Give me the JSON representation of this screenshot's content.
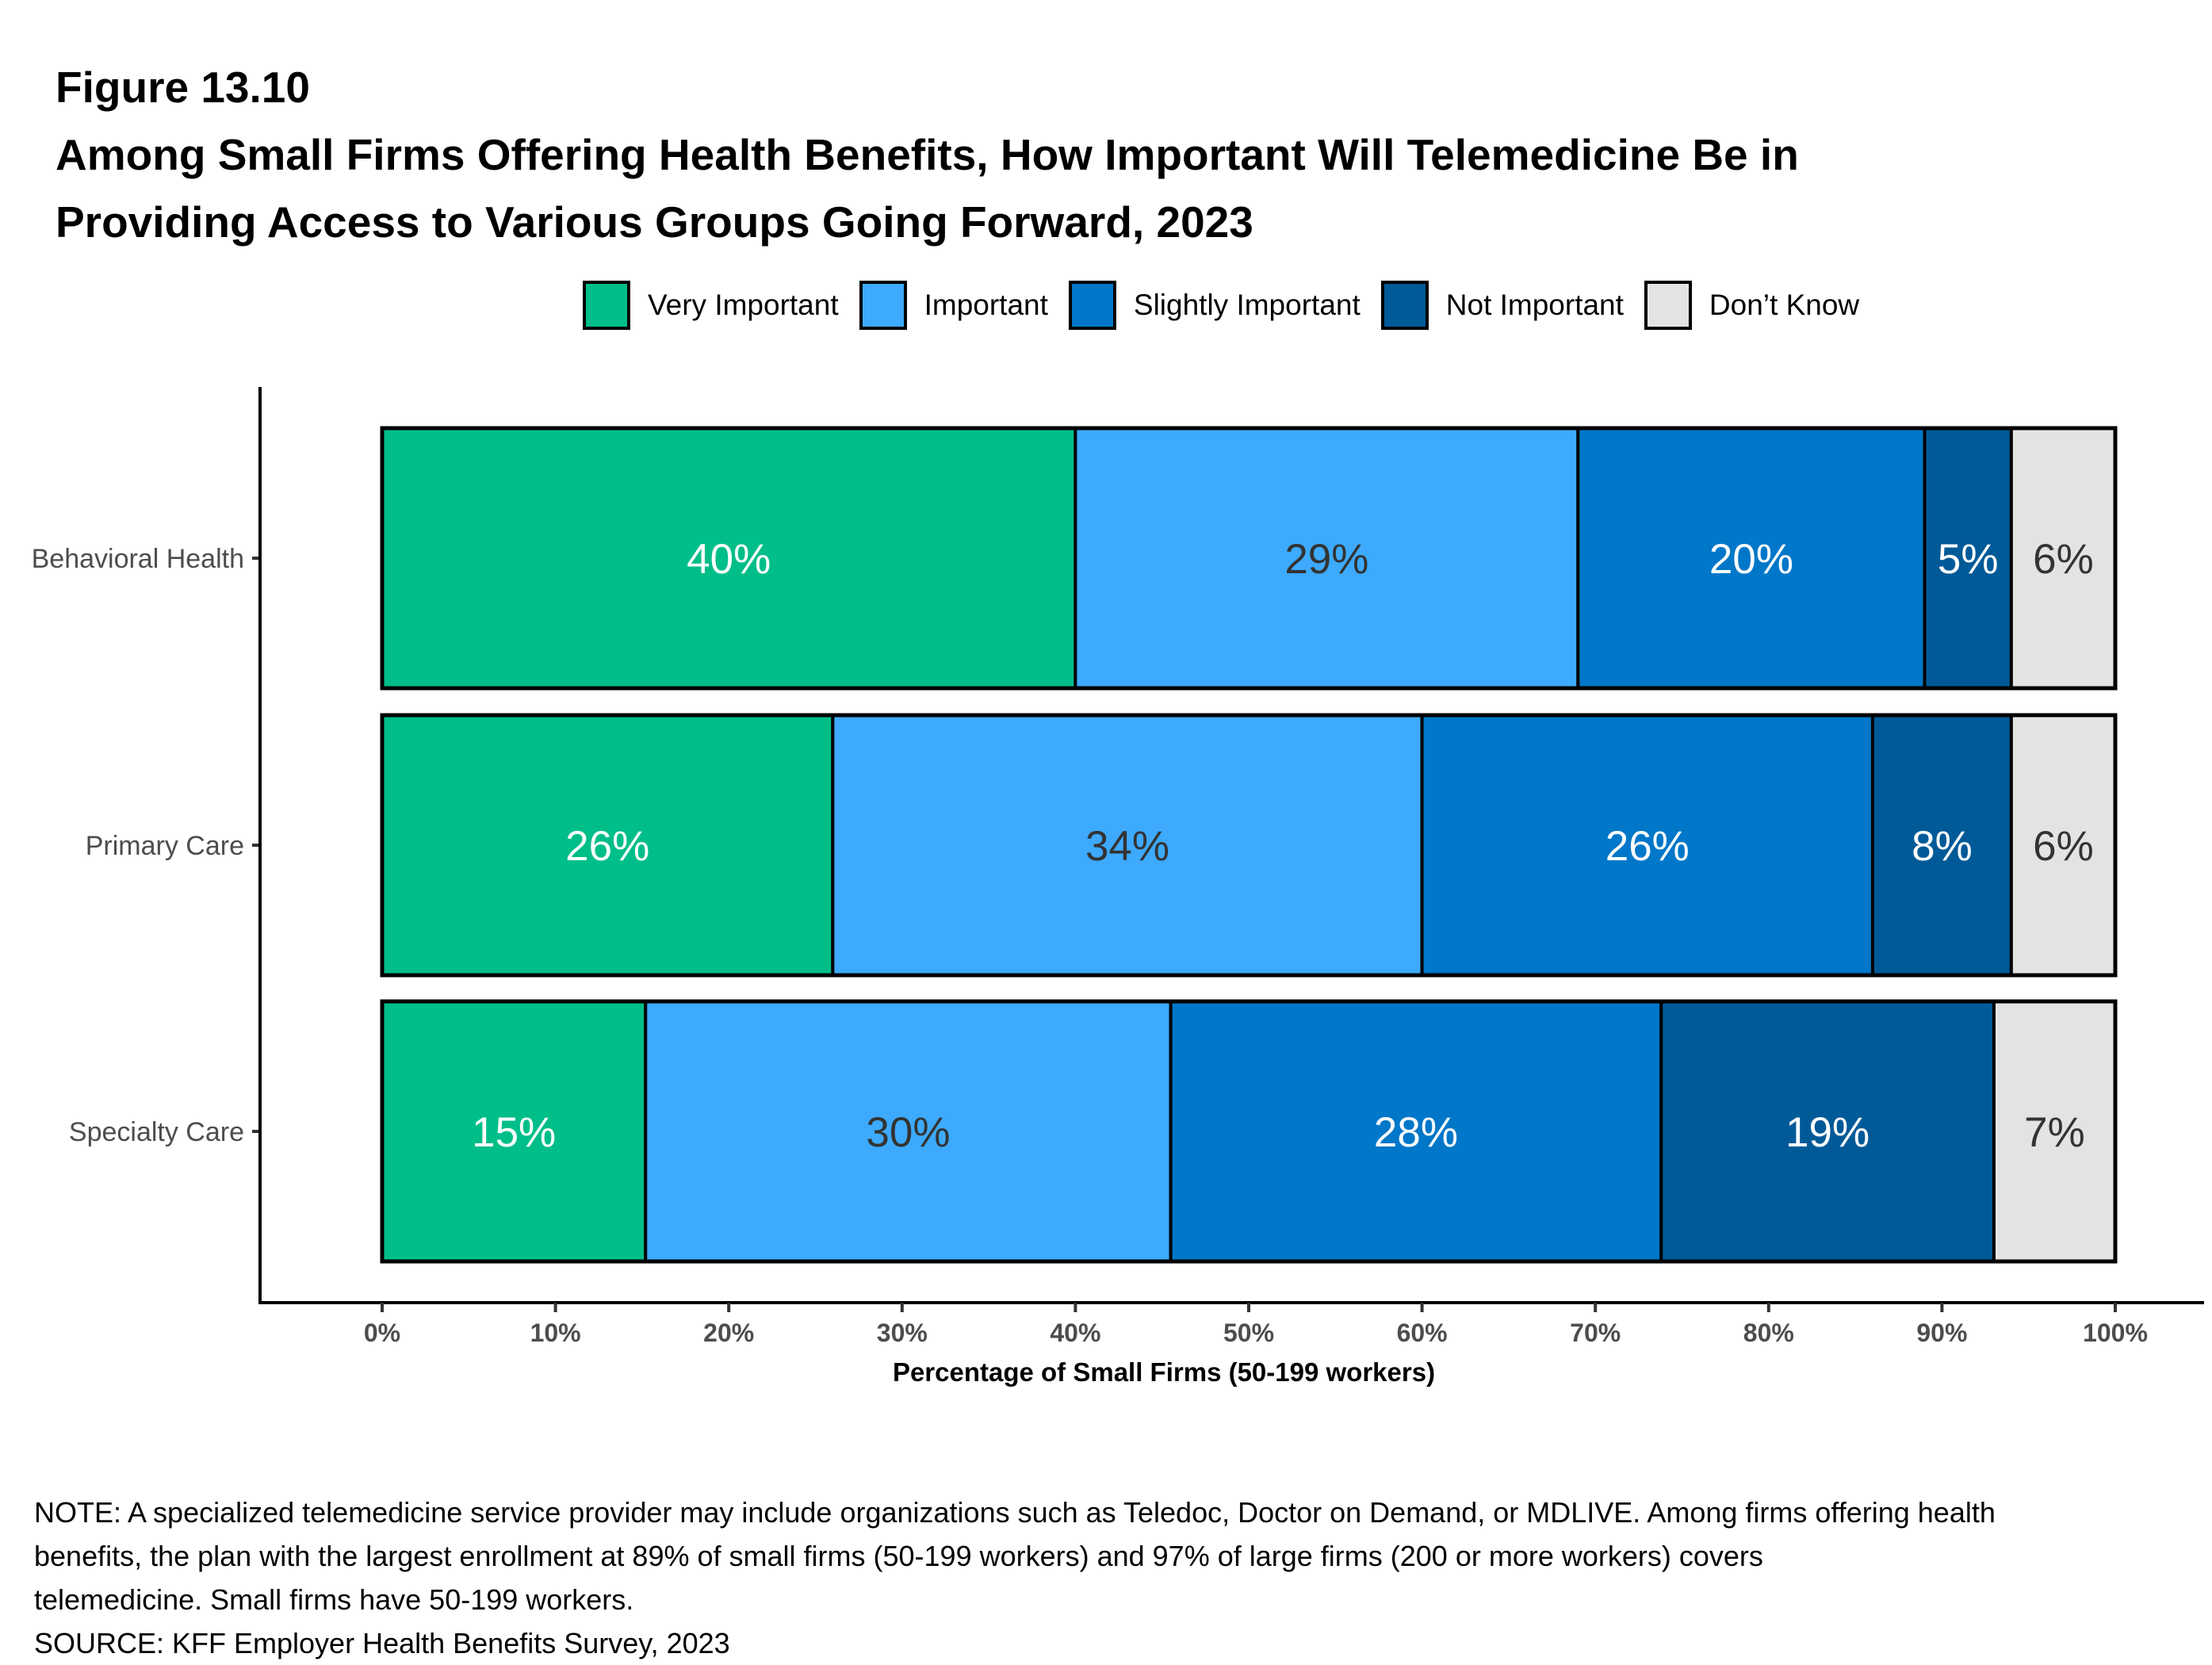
{
  "figure_label": "Figure 13.10",
  "title_lines": [
    "Among Small Firms Offering Health Benefits, How Important Will Telemedicine Be in",
    "Providing Access to Various Groups Going Forward, 2023"
  ],
  "notes": [
    "NOTE: A specialized telemedicine service provider may include organizations such as Teledoc, Doctor on Demand, or MDLIVE. Among firms offering health",
    "benefits, the plan with the largest enrollment at 89% of small firms (50-199 workers) and 97% of large firms (200 or more workers) covers",
    "telemedicine. Small firms have 50-199 workers.",
    "SOURCE: KFF Employer Health Benefits Survey, 2023"
  ],
  "chart_data": {
    "type": "bar",
    "orientation": "horizontal",
    "stacked": true,
    "title": "Among Small Firms Offering Health Benefits, How Important Will Telemedicine Be in Providing Access to Various Groups Going Forward, 2023",
    "xlabel": "Percentage of Small Firms (50-199 workers)",
    "ylabel": "",
    "xlim": [
      0,
      100
    ],
    "x_ticks": [
      0,
      10,
      20,
      30,
      40,
      50,
      60,
      70,
      80,
      90,
      100
    ],
    "x_tick_labels": [
      "0%",
      "10%",
      "20%",
      "30%",
      "40%",
      "50%",
      "60%",
      "70%",
      "80%",
      "90%",
      "100%"
    ],
    "grid": false,
    "legend_position": "top",
    "categories": [
      "Behavioral Health",
      "Primary Care",
      "Specialty Care"
    ],
    "series": [
      {
        "name": "Very Important",
        "color": "#00BE89",
        "label_color": "#FFFFFF",
        "values": [
          40,
          26,
          15.2
        ],
        "labels": [
          "40%",
          "26%",
          "15%"
        ]
      },
      {
        "name": "Important",
        "color": "#3DAAFD",
        "label_color": "#333333",
        "values": [
          29,
          34,
          30.3
        ],
        "labels": [
          "29%",
          "34%",
          "30%"
        ]
      },
      {
        "name": "Slightly Important",
        "color": "#0077C8",
        "label_color": "#FFFFFF",
        "values": [
          20,
          26,
          28.3
        ],
        "labels": [
          "20%",
          "26%",
          "28%"
        ]
      },
      {
        "name": "Not Important",
        "color": "#005A98",
        "label_color": "#FFFFFF",
        "values": [
          5,
          8,
          19.2
        ],
        "labels": [
          "5%",
          "8%",
          "19%"
        ]
      },
      {
        "name": "Don’t Know",
        "color": "#E3E3E3",
        "label_color": "#333333",
        "values": [
          6,
          6,
          7
        ],
        "labels": [
          "6%",
          "6%",
          "7%"
        ]
      }
    ]
  }
}
